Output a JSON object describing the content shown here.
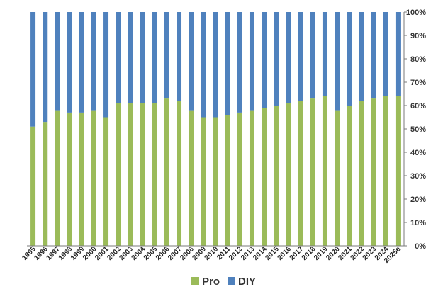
{
  "chart_data": {
    "type": "bar",
    "stacked": true,
    "categories": [
      "1995",
      "1996",
      "1997",
      "1998",
      "1999",
      "2000",
      "2001",
      "2002",
      "2003",
      "2004",
      "2005",
      "2006",
      "2007",
      "2008",
      "2009",
      "2010",
      "2011",
      "2012",
      "2013",
      "2014",
      "2015",
      "2016",
      "2017",
      "2018",
      "2019",
      "2020",
      "2021",
      "2022",
      "2023",
      "2024",
      "2025e"
    ],
    "series": [
      {
        "name": "Pro",
        "color": "#9BBB59",
        "values": [
          51,
          53,
          58,
          57,
          57,
          58,
          55,
          61,
          61,
          61,
          61,
          63,
          62,
          58,
          55,
          55,
          56,
          57,
          58,
          59,
          60,
          61,
          62,
          63,
          64,
          58,
          60,
          62,
          63,
          64,
          64
        ]
      },
      {
        "name": "DIY",
        "color": "#4F81BD",
        "values": [
          49,
          47,
          42,
          43,
          43,
          42,
          45,
          39,
          39,
          39,
          39,
          37,
          38,
          42,
          45,
          45,
          44,
          43,
          42,
          41,
          40,
          39,
          38,
          37,
          36,
          42,
          40,
          38,
          37,
          36,
          36
        ]
      }
    ],
    "yaxis": {
      "position": "right",
      "min": 0,
      "max": 100,
      "step": 10,
      "tick_labels": [
        "0%",
        "10%",
        "20%",
        "30%",
        "40%",
        "50%",
        "60%",
        "70%",
        "80%",
        "90%",
        "100%"
      ]
    },
    "title": "",
    "xlabel": "",
    "ylabel": "",
    "grid": false,
    "legend": {
      "position": "bottom",
      "entries": [
        "Pro",
        "DIY"
      ]
    }
  }
}
